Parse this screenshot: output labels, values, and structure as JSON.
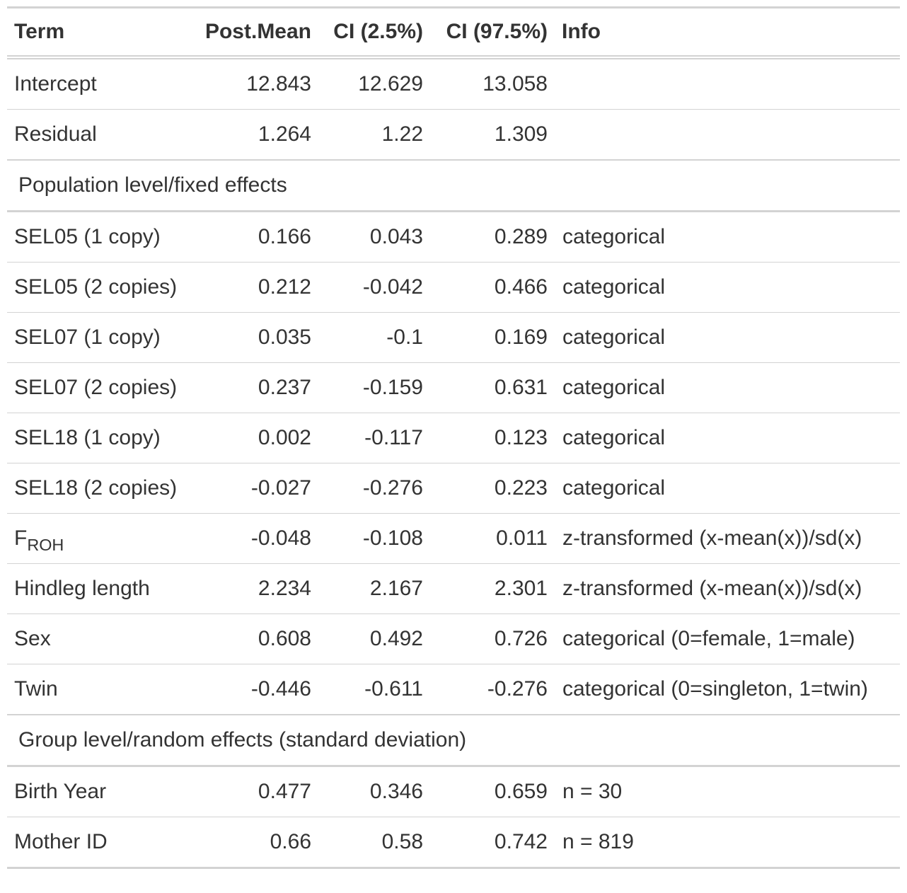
{
  "table": {
    "headers": {
      "term": "Term",
      "mean": "Post.Mean",
      "ci_low": "CI (2.5%)",
      "ci_high": "CI (97.5%)",
      "info": "Info"
    },
    "top_rows": [
      {
        "term": "Intercept",
        "mean": "12.843",
        "ci_low": "12.629",
        "ci_high": "13.058",
        "info": ""
      },
      {
        "term": "Residual",
        "mean": "1.264",
        "ci_low": "1.22",
        "ci_high": "1.309",
        "info": ""
      }
    ],
    "fixed_group_label": "Population level/fixed effects",
    "fixed_rows": [
      {
        "term": "SEL05 (1 copy)",
        "mean": "0.166",
        "ci_low": "0.043",
        "ci_high": "0.289",
        "info": "categorical"
      },
      {
        "term": "SEL05 (2 copies)",
        "mean": "0.212",
        "ci_low": "-0.042",
        "ci_high": "0.466",
        "info": "categorical"
      },
      {
        "term": "SEL07 (1 copy)",
        "mean": "0.035",
        "ci_low": "-0.1",
        "ci_high": "0.169",
        "info": "categorical"
      },
      {
        "term": "SEL07 (2 copies)",
        "mean": "0.237",
        "ci_low": "-0.159",
        "ci_high": "0.631",
        "info": "categorical"
      },
      {
        "term": "SEL18 (1 copy)",
        "mean": "0.002",
        "ci_low": "-0.117",
        "ci_high": "0.123",
        "info": "categorical"
      },
      {
        "term": "SEL18 (2 copies)",
        "mean": "-0.027",
        "ci_low": "-0.276",
        "ci_high": "0.223",
        "info": "categorical"
      },
      {
        "term": "F",
        "term_sub": "ROH",
        "mean": "-0.048",
        "ci_low": "-0.108",
        "ci_high": "0.011",
        "info": "z-transformed (x-mean(x))/sd(x)"
      },
      {
        "term": "Hindleg length",
        "mean": "2.234",
        "ci_low": "2.167",
        "ci_high": "2.301",
        "info": "z-transformed (x-mean(x))/sd(x)"
      },
      {
        "term": "Sex",
        "mean": "0.608",
        "ci_low": "0.492",
        "ci_high": "0.726",
        "info": "categorical (0=female, 1=male)"
      },
      {
        "term": "Twin",
        "mean": "-0.446",
        "ci_low": "-0.611",
        "ci_high": "-0.276",
        "info": "categorical (0=singleton, 1=twin)"
      }
    ],
    "random_group_label": "Group level/random effects (standard deviation)",
    "random_rows": [
      {
        "term": "Birth Year",
        "mean": "0.477",
        "ci_low": "0.346",
        "ci_high": "0.659",
        "info": "n = 30"
      },
      {
        "term": "Mother ID",
        "mean": "0.66",
        "ci_low": "0.58",
        "ci_high": "0.742",
        "info": "n = 819"
      }
    ]
  }
}
